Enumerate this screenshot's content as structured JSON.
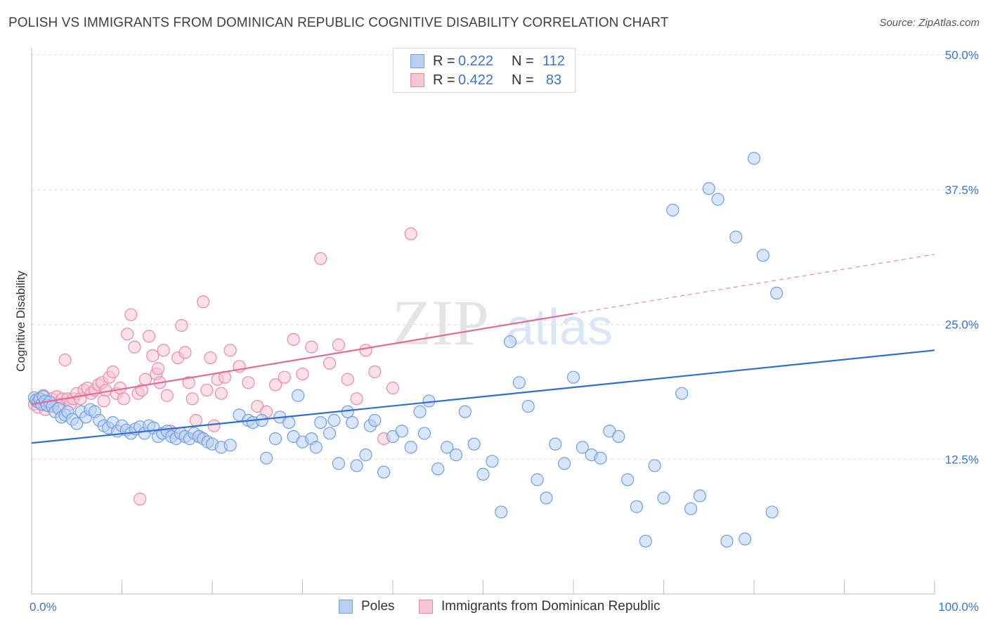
{
  "header": {
    "title": "POLISH VS IMMIGRANTS FROM DOMINICAN REPUBLIC COGNITIVE DISABILITY CORRELATION CHART",
    "source": "Source: ZipAtlas.com"
  },
  "watermark": {
    "zip": "ZIP",
    "atlas": "atlas"
  },
  "legend": {
    "rows": [
      {
        "r_label": "R =",
        "r_value": "0.222",
        "n_label": "N =",
        "n_value": "112",
        "color": "#6f9fe0",
        "fill": "#b9d0f2"
      },
      {
        "r_label": "R =",
        "r_value": "0.422",
        "n_label": "N =",
        "n_value": "83",
        "color": "#e88aa8",
        "fill": "#f7c6d6"
      }
    ]
  },
  "bottom_legend": {
    "poles": "Poles",
    "dominican": "Immigrants from Dominican Republic"
  },
  "chart_data": {
    "type": "scatter",
    "title": "POLISH VS IMMIGRANTS FROM DOMINICAN REPUBLIC COGNITIVE DISABILITY CORRELATION CHART",
    "xlabel": "",
    "ylabel": "Cognitive Disability",
    "xlim": [
      0,
      100
    ],
    "ylim": [
      0,
      50
    ],
    "x_ticks": [
      "0.0%",
      "100.0%"
    ],
    "y_ticks": [
      {
        "value": 12.5,
        "label": "12.5%"
      },
      {
        "value": 25.0,
        "label": "25.0%"
      },
      {
        "value": 37.5,
        "label": "37.5%"
      },
      {
        "value": 50.0,
        "label": "50.0%"
      }
    ],
    "grid": true,
    "series": [
      {
        "name": "Poles",
        "color": "#6f9fe0",
        "fill": "#b9d0f2",
        "trend": {
          "x0": 0,
          "y0": 14.0,
          "x1": 100,
          "y1": 22.6,
          "dashed_from": null
        },
        "points": [
          [
            0.3,
            18.2
          ],
          [
            0.5,
            18.0
          ],
          [
            0.7,
            17.8
          ],
          [
            0.9,
            18.1
          ],
          [
            1.1,
            17.6
          ],
          [
            1.3,
            18.3
          ],
          [
            1.5,
            17.9
          ],
          [
            1.7,
            17.5
          ],
          [
            2.0,
            17.8
          ],
          [
            2.3,
            17.4
          ],
          [
            2.6,
            16.9
          ],
          [
            3.0,
            17.2
          ],
          [
            3.3,
            16.4
          ],
          [
            3.7,
            16.6
          ],
          [
            4.0,
            16.9
          ],
          [
            4.5,
            16.2
          ],
          [
            5.0,
            15.8
          ],
          [
            5.5,
            16.9
          ],
          [
            6.0,
            16.4
          ],
          [
            6.5,
            17.1
          ],
          [
            7.0,
            16.9
          ],
          [
            7.5,
            16.1
          ],
          [
            8.0,
            15.6
          ],
          [
            8.5,
            15.4
          ],
          [
            9.0,
            15.9
          ],
          [
            9.5,
            15.1
          ],
          [
            10.0,
            15.6
          ],
          [
            10.5,
            15.2
          ],
          [
            11.0,
            14.9
          ],
          [
            11.5,
            15.3
          ],
          [
            12.0,
            15.5
          ],
          [
            12.5,
            14.9
          ],
          [
            13.0,
            15.6
          ],
          [
            13.5,
            15.4
          ],
          [
            14.0,
            14.6
          ],
          [
            14.5,
            14.9
          ],
          [
            15.0,
            15.1
          ],
          [
            15.5,
            14.6
          ],
          [
            16.0,
            14.4
          ],
          [
            16.5,
            14.9
          ],
          [
            17.0,
            14.6
          ],
          [
            17.5,
            14.4
          ],
          [
            18.0,
            14.9
          ],
          [
            18.5,
            14.6
          ],
          [
            19.0,
            14.4
          ],
          [
            19.5,
            14.1
          ],
          [
            20.0,
            13.9
          ],
          [
            21.0,
            13.6
          ],
          [
            22.0,
            13.8
          ],
          [
            23.0,
            16.6
          ],
          [
            24.0,
            16.1
          ],
          [
            24.5,
            15.9
          ],
          [
            25.5,
            16.1
          ],
          [
            26.0,
            12.6
          ],
          [
            27.0,
            14.4
          ],
          [
            27.5,
            16.4
          ],
          [
            28.5,
            15.9
          ],
          [
            29.0,
            14.6
          ],
          [
            29.5,
            18.4
          ],
          [
            30.0,
            14.1
          ],
          [
            31.0,
            14.4
          ],
          [
            31.5,
            13.6
          ],
          [
            32.0,
            15.9
          ],
          [
            33.0,
            14.9
          ],
          [
            33.5,
            16.1
          ],
          [
            34.0,
            12.1
          ],
          [
            35.0,
            16.9
          ],
          [
            35.5,
            15.9
          ],
          [
            36.0,
            11.9
          ],
          [
            37.0,
            12.9
          ],
          [
            37.5,
            15.6
          ],
          [
            38.0,
            16.1
          ],
          [
            39.0,
            11.3
          ],
          [
            40.0,
            14.6
          ],
          [
            41.0,
            15.1
          ],
          [
            42.0,
            13.6
          ],
          [
            43.0,
            16.9
          ],
          [
            43.5,
            14.9
          ],
          [
            44.0,
            17.9
          ],
          [
            45.0,
            11.6
          ],
          [
            46.0,
            13.6
          ],
          [
            47.0,
            12.9
          ],
          [
            48.0,
            16.9
          ],
          [
            49.0,
            13.9
          ],
          [
            50.0,
            11.1
          ],
          [
            51.0,
            12.3
          ],
          [
            52.0,
            7.6
          ],
          [
            53.0,
            23.4
          ],
          [
            54.0,
            19.6
          ],
          [
            55.0,
            17.4
          ],
          [
            56.0,
            10.6
          ],
          [
            57.0,
            8.9
          ],
          [
            58.0,
            13.9
          ],
          [
            59.0,
            12.1
          ],
          [
            60.0,
            20.1
          ],
          [
            61.0,
            13.6
          ],
          [
            62.0,
            12.9
          ],
          [
            63.0,
            12.6
          ],
          [
            64.0,
            15.1
          ],
          [
            65.0,
            14.6
          ],
          [
            66.0,
            10.6
          ],
          [
            67.0,
            8.1
          ],
          [
            68.0,
            4.9
          ],
          [
            69.0,
            11.9
          ],
          [
            70.0,
            8.9
          ],
          [
            71.0,
            35.6
          ],
          [
            72.0,
            18.6
          ],
          [
            73.0,
            7.9
          ],
          [
            74.0,
            9.1
          ],
          [
            75.0,
            37.6
          ],
          [
            76.0,
            36.6
          ],
          [
            77.0,
            4.9
          ],
          [
            78.0,
            33.1
          ],
          [
            79.0,
            5.1
          ],
          [
            80.0,
            40.4
          ],
          [
            81.0,
            31.4
          ],
          [
            82.0,
            7.6
          ],
          [
            82.5,
            27.9
          ]
        ]
      },
      {
        "name": "Immigrants from Dominican Republic",
        "color": "#e88aa8",
        "fill": "#f7c6d6",
        "trend": {
          "x0": 0,
          "y0": 17.6,
          "x1": 60,
          "y1": 26.0,
          "dashed_to_x": 100,
          "dashed_to_y": 31.5
        },
        "points": [
          [
            0.3,
            17.6
          ],
          [
            0.5,
            17.9
          ],
          [
            0.7,
            17.3
          ],
          [
            0.9,
            18.1
          ],
          [
            1.1,
            17.6
          ],
          [
            1.3,
            18.4
          ],
          [
            1.5,
            17.1
          ],
          [
            1.7,
            17.9
          ],
          [
            2.0,
            17.4
          ],
          [
            2.2,
            18.1
          ],
          [
            2.5,
            17.7
          ],
          [
            2.8,
            18.3
          ],
          [
            3.1,
            17.6
          ],
          [
            3.4,
            18.1
          ],
          [
            3.7,
            21.7
          ],
          [
            4.0,
            18.1
          ],
          [
            4.3,
            17.6
          ],
          [
            4.6,
            18.1
          ],
          [
            5.0,
            18.6
          ],
          [
            5.4,
            18.1
          ],
          [
            5.8,
            18.9
          ],
          [
            6.2,
            19.1
          ],
          [
            6.6,
            18.6
          ],
          [
            7.0,
            18.9
          ],
          [
            7.4,
            19.4
          ],
          [
            7.8,
            19.6
          ],
          [
            8.2,
            18.9
          ],
          [
            8.6,
            20.1
          ],
          [
            9.0,
            20.6
          ],
          [
            9.4,
            18.6
          ],
          [
            9.8,
            19.1
          ],
          [
            10.2,
            18.1
          ],
          [
            10.6,
            24.1
          ],
          [
            11.0,
            25.9
          ],
          [
            11.4,
            22.9
          ],
          [
            11.8,
            18.6
          ],
          [
            12.2,
            18.9
          ],
          [
            12.6,
            19.9
          ],
          [
            13.0,
            23.9
          ],
          [
            13.4,
            22.1
          ],
          [
            13.8,
            20.4
          ],
          [
            14.2,
            19.6
          ],
          [
            14.6,
            22.6
          ],
          [
            15.0,
            18.4
          ],
          [
            15.4,
            15.1
          ],
          [
            15.8,
            14.9
          ],
          [
            16.2,
            21.9
          ],
          [
            16.6,
            24.9
          ],
          [
            17.0,
            22.4
          ],
          [
            17.4,
            19.6
          ],
          [
            17.8,
            18.1
          ],
          [
            18.2,
            16.1
          ],
          [
            18.6,
            14.6
          ],
          [
            19.0,
            27.1
          ],
          [
            19.4,
            18.9
          ],
          [
            19.8,
            21.9
          ],
          [
            20.2,
            15.6
          ],
          [
            20.6,
            19.9
          ],
          [
            21.0,
            18.6
          ],
          [
            21.4,
            20.1
          ],
          [
            22.0,
            22.6
          ],
          [
            23.0,
            21.1
          ],
          [
            24.0,
            19.6
          ],
          [
            25.0,
            17.4
          ],
          [
            26.0,
            16.9
          ],
          [
            27.0,
            19.4
          ],
          [
            28.0,
            20.1
          ],
          [
            29.0,
            23.6
          ],
          [
            30.0,
            20.4
          ],
          [
            31.0,
            22.9
          ],
          [
            32.0,
            31.1
          ],
          [
            33.0,
            21.4
          ],
          [
            34.0,
            23.1
          ],
          [
            35.0,
            19.9
          ],
          [
            36.0,
            18.1
          ],
          [
            37.0,
            22.6
          ],
          [
            38.0,
            20.6
          ],
          [
            39.0,
            14.4
          ],
          [
            40.0,
            19.1
          ],
          [
            42.0,
            33.4
          ],
          [
            12.0,
            8.8
          ],
          [
            8.0,
            17.9
          ],
          [
            14.0,
            20.9
          ]
        ]
      }
    ]
  }
}
